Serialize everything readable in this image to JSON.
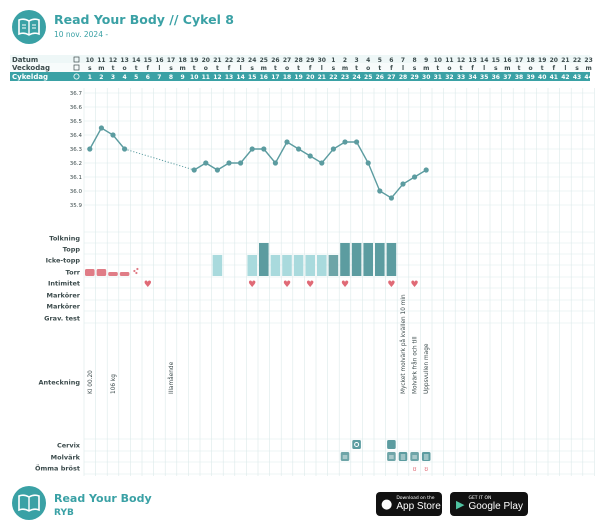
{
  "header": {
    "title": "Read Your Body // Cykel 8",
    "subtitle": "10 nov. 2024 -"
  },
  "footer": {
    "title": "Read Your Body",
    "subtitle": "RYB"
  },
  "badges": {
    "app_store": {
      "small": "Download on the",
      "big": "App Store"
    },
    "google_play": {
      "small": "GET IT ON",
      "big": "Google Play"
    }
  },
  "colors": {
    "accent": "#3aa1a5",
    "dark_teal": "#5c9ca0",
    "light_teal": "#a9dadd",
    "mid_teal": "#6ea5a8",
    "pink": "#e07c86",
    "heart": "#e06a76",
    "grid": "#dbe9ea"
  },
  "row_labels": {
    "datum": "Datum",
    "veckodag": "Veckodag",
    "cykeldag": "Cykeldag",
    "tolkning": "Tolkning",
    "topp": "Topp",
    "icke_topp": "Icke-topp",
    "torr": "Torr",
    "intimitet": "Intimitet",
    "markorer1": "Markörer",
    "markorer2": "Markörer",
    "grav_test": "Grav. test",
    "anteckning": "Anteckning",
    "cervix": "Cervix",
    "molvark": "Molvärk",
    "omma_brost": "Ömma bröst"
  },
  "chart_data": {
    "type": "line",
    "dates": [
      10,
      11,
      12,
      13,
      14,
      15,
      16,
      17,
      18,
      19,
      20,
      21,
      22,
      23,
      24,
      25,
      26,
      27,
      28,
      29,
      30,
      1,
      2,
      3,
      4,
      5,
      6,
      7,
      8,
      9,
      10,
      11,
      12,
      13,
      14,
      15,
      16,
      17,
      18,
      19,
      20,
      21,
      22,
      23
    ],
    "weekdays": [
      "s",
      "m",
      "t",
      "o",
      "t",
      "f",
      "l",
      "s",
      "m",
      "t",
      "o",
      "t",
      "f",
      "l",
      "s",
      "m",
      "t",
      "o",
      "t",
      "f",
      "l",
      "s",
      "m",
      "t",
      "o",
      "t",
      "f",
      "l",
      "s",
      "m",
      "t",
      "o",
      "t",
      "f",
      "l",
      "s",
      "m",
      "t",
      "o",
      "t",
      "f",
      "l",
      "s",
      "m"
    ],
    "cycle_days": [
      1,
      2,
      3,
      4,
      5,
      6,
      7,
      8,
      9,
      10,
      11,
      12,
      13,
      14,
      15,
      16,
      17,
      18,
      19,
      20,
      21,
      22,
      23,
      24,
      25,
      26,
      27,
      28,
      29,
      30,
      31,
      32,
      33,
      34,
      35,
      36,
      37,
      38,
      39,
      40,
      41,
      42,
      43,
      44
    ],
    "y_ticks": [
      "36.7",
      "36.6",
      "36.5",
      "36.4",
      "36.3",
      "36.2",
      "36.1",
      "36.0",
      "35.9"
    ],
    "ylim": [
      35.85,
      36.7
    ],
    "temperature": [
      36.3,
      36.45,
      36.4,
      36.3,
      null,
      null,
      null,
      null,
      null,
      36.15,
      36.2,
      36.15,
      36.2,
      36.2,
      36.3,
      36.3,
      36.2,
      36.35,
      36.3,
      36.25,
      36.2,
      36.3,
      36.35,
      36.35,
      36.2,
      36.0,
      35.95,
      36.05,
      36.1,
      36.15,
      null,
      null,
      null,
      null,
      null,
      null,
      null,
      null,
      null,
      null,
      null,
      null,
      null,
      null
    ],
    "dotted_gap": [
      4,
      10
    ],
    "tolkning_icon_day": 23,
    "topp_days": [
      16,
      23,
      24,
      25,
      26,
      27
    ],
    "icke_topp": [
      {
        "day": 12,
        "shade": "light"
      },
      {
        "day": 15,
        "shade": "light"
      },
      {
        "day": 16,
        "shade": "dark"
      },
      {
        "day": 17,
        "shade": "light"
      },
      {
        "day": 18,
        "shade": "light"
      },
      {
        "day": 19,
        "shade": "light"
      },
      {
        "day": 20,
        "shade": "light"
      },
      {
        "day": 21,
        "shade": "light"
      },
      {
        "day": 22,
        "shade": "mid"
      },
      {
        "day": 23,
        "shade": "dark"
      },
      {
        "day": 24,
        "shade": "dark"
      },
      {
        "day": 25,
        "shade": "dark"
      },
      {
        "day": 26,
        "shade": "dark"
      },
      {
        "day": 27,
        "shade": "dark"
      }
    ],
    "torr": [
      {
        "day": 1,
        "level": "full"
      },
      {
        "day": 2,
        "level": "full"
      },
      {
        "day": 3,
        "level": "half"
      },
      {
        "day": 4,
        "level": "half"
      },
      {
        "day": 5,
        "level": "dots"
      }
    ],
    "intimitet_days": [
      6,
      15,
      18,
      20,
      23,
      27,
      29
    ],
    "notes": [
      {
        "day": 1,
        "text": "Kl 00.20"
      },
      {
        "day": 3,
        "text": "106 kg"
      },
      {
        "day": 8,
        "text": "Illamående"
      },
      {
        "day": 28,
        "text": "Mycket molvärk på kvällen 10 min"
      },
      {
        "day": 29,
        "text": "Molvärk från och till"
      },
      {
        "day": 30,
        "text": "Uppsvullen mage"
      }
    ],
    "cervix": [
      {
        "day": 24,
        "kind": "circle"
      },
      {
        "day": 27,
        "kind": "plain"
      }
    ],
    "molvark": [
      {
        "day": 23,
        "kind": "light"
      },
      {
        "day": 27,
        "kind": "light"
      },
      {
        "day": 28,
        "kind": "dark"
      },
      {
        "day": 29,
        "kind": "light"
      },
      {
        "day": 30,
        "kind": "dark"
      }
    ],
    "omma_brost_days": [
      29,
      30
    ]
  }
}
